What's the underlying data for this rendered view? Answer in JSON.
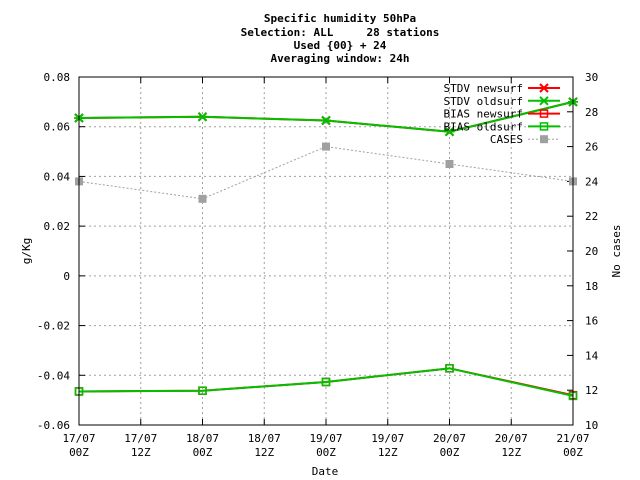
{
  "chart_data": {
    "type": "line",
    "title_lines": [
      "Specific humidity 50hPa",
      "Selection: ALL     28 stations",
      "Used {00} + 24",
      "Averaging window: 24h"
    ],
    "xlabel": "Date",
    "ylabel": "g/Kg",
    "y2label": "No cases",
    "ylim": [
      -0.06,
      0.08
    ],
    "y2lim": [
      10,
      30
    ],
    "yticks": [
      -0.06,
      -0.04,
      -0.02,
      0,
      0.02,
      0.04,
      0.06,
      0.08
    ],
    "ytick_labels": [
      "-0.06",
      "-0.04",
      "-0.02",
      "0",
      "0.02",
      "0.04",
      "0.06",
      "0.08"
    ],
    "y2ticks": [
      10,
      12,
      14,
      16,
      18,
      20,
      22,
      24,
      26,
      28,
      30
    ],
    "y2tick_labels": [
      "10",
      "12",
      "14",
      "16",
      "18",
      "20",
      "22",
      "24",
      "26",
      "28",
      "30"
    ],
    "x_categories": [
      [
        "17/07",
        "00Z"
      ],
      [
        "17/07",
        "12Z"
      ],
      [
        "18/07",
        "00Z"
      ],
      [
        "18/07",
        "12Z"
      ],
      [
        "19/07",
        "00Z"
      ],
      [
        "19/07",
        "12Z"
      ],
      [
        "20/07",
        "00Z"
      ],
      [
        "20/07",
        "12Z"
      ],
      [
        "21/07",
        "00Z"
      ]
    ],
    "grid": true,
    "legend_position": "top-right",
    "series": [
      {
        "name": "STDV newsurf",
        "axis": "y",
        "color": "#ff0000",
        "marker": "x",
        "linestyle": "solid",
        "x": [
          0,
          2,
          4,
          6,
          8
        ],
        "values": [
          0.0635,
          0.064,
          0.0625,
          0.058,
          0.07
        ]
      },
      {
        "name": "STDV oldsurf",
        "axis": "y",
        "color": "#00c000",
        "marker": "x",
        "linestyle": "solid",
        "x": [
          0,
          2,
          4,
          6,
          8
        ],
        "values": [
          0.0635,
          0.064,
          0.0625,
          0.058,
          0.07
        ]
      },
      {
        "name": "BIAS newsurf",
        "axis": "y",
        "color": "#ff0000",
        "marker": "square",
        "linestyle": "solid",
        "x": [
          0,
          2,
          4,
          6,
          8
        ],
        "values": [
          -0.0465,
          -0.0462,
          -0.0427,
          -0.0372,
          -0.048
        ]
      },
      {
        "name": "BIAS oldsurf",
        "axis": "y",
        "color": "#00c000",
        "marker": "square",
        "linestyle": "solid",
        "x": [
          0,
          2,
          4,
          6,
          8
        ],
        "values": [
          -0.0465,
          -0.0462,
          -0.0427,
          -0.0372,
          -0.0483
        ]
      },
      {
        "name": "CASES",
        "axis": "y2",
        "color": "#a0a0a0",
        "marker": "filled-square",
        "linestyle": "dotted",
        "x": [
          0,
          2,
          4,
          6,
          8
        ],
        "values": [
          24,
          23,
          26,
          25,
          24
        ]
      }
    ]
  }
}
